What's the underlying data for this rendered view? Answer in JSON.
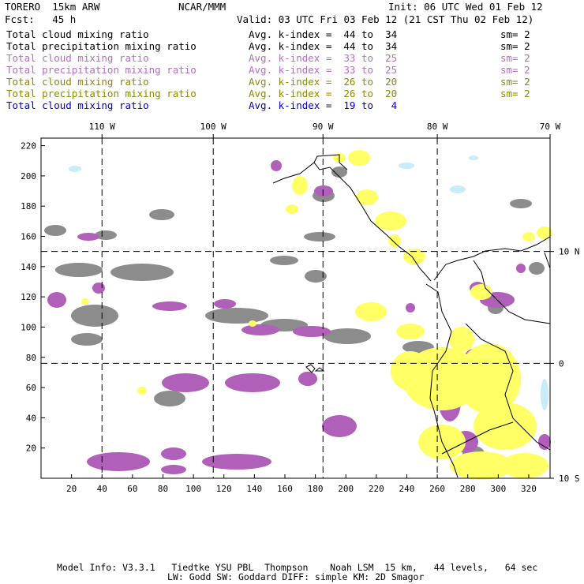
{
  "header": {
    "model_name": "TORERO  15km ARW",
    "center": "NCAR/MMM",
    "init": "Init: 06 UTC Wed 01 Feb 12",
    "fcst": "Fcst:   45 h",
    "valid": "Valid: 03 UTC Fri 03 Feb 12 (21 CST Thu 02 Feb 12)"
  },
  "legend": {
    "rows": [
      {
        "field": "Total cloud mixing ratio",
        "kindex": "Avg. k-index =  44 to  34",
        "sm": "sm= 2",
        "color": "#000000"
      },
      {
        "field": "Total precipitation mixing ratio",
        "kindex": "Avg. k-index =  44 to  34",
        "sm": "sm= 2",
        "color": "#000000"
      },
      {
        "field": "Total cloud mixing ratio",
        "kindex": "Avg. k-index =  33 to  25",
        "sm": "sm= 2",
        "color": "#b070c0"
      },
      {
        "field": "Total precipitation mixing ratio",
        "kindex": "Avg. k-index =  33 to  25",
        "sm": "sm= 2",
        "color": "#b070c0"
      },
      {
        "field": "Total cloud mixing ratio",
        "kindex": "Avg. k-index =  26 to  20",
        "sm": "sm= 2",
        "color": "#8a8a00"
      },
      {
        "field": "Total precipitation mixing ratio",
        "kindex": "Avg. k-index =  26 to  20",
        "sm": "sm= 2",
        "color": "#8a8a00"
      },
      {
        "field": "Total cloud mixing ratio",
        "kindex": "Avg. k-index =  19 to   4",
        "sm": "",
        "color": "#0000cc"
      }
    ]
  },
  "footer": {
    "line1": "Model Info: V3.3.1   Tiedtke YSU PBL  Thompson    Noah LSM  15 km,   44 levels,   64 sec",
    "line2": "LW: Godd SW: Goddard DIFF: simple KM: 2D Smagor"
  },
  "colors": {
    "gray": "#8c8c8c",
    "purple": "#b060b8",
    "yellow": "#ffff66",
    "light_blue": "#c8ecf8"
  },
  "chart_data": {
    "type": "map",
    "x_grid_ticks": [
      20,
      40,
      60,
      80,
      100,
      120,
      140,
      160,
      180,
      200,
      220,
      240,
      260,
      280,
      300,
      320
    ],
    "y_grid_ticks": [
      20,
      40,
      60,
      80,
      100,
      120,
      140,
      160,
      180,
      200,
      220
    ],
    "xlim": [
      0,
      334
    ],
    "ylim": [
      0,
      225
    ],
    "lon_labels": [
      {
        "label": "110 W",
        "x": 40
      },
      {
        "label": "100 W",
        "x": 113
      },
      {
        "label": "90 W",
        "x": 185
      },
      {
        "label": "80 W",
        "x": 260
      },
      {
        "label": "70 W",
        "x": 334
      }
    ],
    "lat_labels": [
      {
        "label": "10 N",
        "y": 150
      },
      {
        "label": "0",
        "y": 76
      },
      {
        "label": "10 S",
        "y": 0
      }
    ],
    "lon_lines": [
      40,
      113,
      185,
      260
    ],
    "lat_lines": [
      150,
      76
    ]
  }
}
